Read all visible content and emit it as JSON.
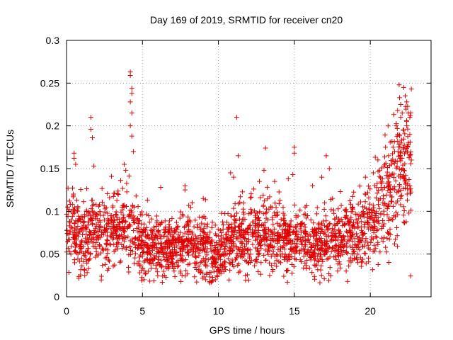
{
  "chart_data": {
    "type": "scatter",
    "title": "Day 169 of 2019, SRMTID for receiver cn20",
    "xlabel": "GPS time / hours",
    "ylabel": "SRMTID / TECUs",
    "xlim": [
      0,
      24
    ],
    "ylim": [
      0,
      0.3
    ],
    "xticks": [
      0,
      5,
      10,
      15,
      20
    ],
    "xtick_labels": [
      "0",
      "5",
      "10",
      "15",
      "20"
    ],
    "yticks": [
      0,
      0.05,
      0.1,
      0.15,
      0.2,
      0.25,
      0.3
    ],
    "ytick_labels": [
      "0",
      "0.05",
      "0.1",
      "0.15",
      "0.2",
      "0.25",
      "0.3"
    ],
    "grid": true,
    "marker": "plus",
    "series": [
      {
        "name": "SRMTID",
        "color": "#e00000",
        "baseline": [
          [
            0,
            0.082
          ],
          [
            0.5,
            0.078
          ],
          [
            1,
            0.072
          ],
          [
            2,
            0.075
          ],
          [
            3,
            0.078
          ],
          [
            4,
            0.085
          ],
          [
            4.5,
            0.07
          ],
          [
            5,
            0.062
          ],
          [
            6,
            0.058
          ],
          [
            7,
            0.06
          ],
          [
            8,
            0.062
          ],
          [
            9,
            0.058
          ],
          [
            9.5,
            0.05
          ],
          [
            10,
            0.048
          ],
          [
            10.5,
            0.06
          ],
          [
            11,
            0.068
          ],
          [
            12,
            0.072
          ],
          [
            13,
            0.075
          ],
          [
            14,
            0.072
          ],
          [
            15,
            0.065
          ],
          [
            16,
            0.062
          ],
          [
            17,
            0.065
          ],
          [
            18,
            0.068
          ],
          [
            19,
            0.072
          ],
          [
            20,
            0.082
          ],
          [
            21,
            0.11
          ],
          [
            22,
            0.14
          ],
          [
            22.7,
            0.15
          ]
        ],
        "spread": [
          [
            0,
            0.025
          ],
          [
            4,
            0.03
          ],
          [
            5,
            0.022
          ],
          [
            9,
            0.022
          ],
          [
            10,
            0.02
          ],
          [
            12,
            0.028
          ],
          [
            15,
            0.022
          ],
          [
            19,
            0.024
          ],
          [
            20,
            0.03
          ],
          [
            21,
            0.04
          ],
          [
            22.7,
            0.05
          ]
        ],
        "x_range": [
          0,
          22.7
        ],
        "point_count": 2400,
        "points": [
          [
            0.1,
            0.127
          ],
          [
            0.2,
            0.112
          ],
          [
            0.5,
            0.168
          ],
          [
            0.5,
            0.162
          ],
          [
            0.6,
            0.155
          ],
          [
            1.2,
            0.025
          ],
          [
            1.6,
            0.21
          ],
          [
            1.6,
            0.196
          ],
          [
            1.7,
            0.186
          ],
          [
            1.8,
            0.153
          ],
          [
            2.3,
            0.024
          ],
          [
            3.8,
            0.155
          ],
          [
            3.9,
            0.148
          ],
          [
            4.2,
            0.263
          ],
          [
            4.2,
            0.259
          ],
          [
            4.3,
            0.244
          ],
          [
            4.3,
            0.238
          ],
          [
            4.2,
            0.228
          ],
          [
            4.3,
            0.215
          ],
          [
            4.2,
            0.2
          ],
          [
            4.3,
            0.188
          ],
          [
            4.4,
            0.17
          ],
          [
            5.1,
            0.02
          ],
          [
            6.2,
            0.128
          ],
          [
            7.8,
            0.13
          ],
          [
            7.8,
            0.125
          ],
          [
            9.0,
            0.115
          ],
          [
            9.8,
            0.02
          ],
          [
            9.9,
            0.025
          ],
          [
            10.8,
            0.145
          ],
          [
            11.0,
            0.14
          ],
          [
            11.2,
            0.21
          ],
          [
            11.3,
            0.165
          ],
          [
            12.7,
            0.135
          ],
          [
            13.1,
            0.174
          ],
          [
            13.0,
            0.148
          ],
          [
            13.7,
            0.135
          ],
          [
            14.6,
            0.138
          ],
          [
            15.0,
            0.175
          ],
          [
            15.0,
            0.168
          ],
          [
            14.9,
            0.143
          ],
          [
            16.2,
            0.13
          ],
          [
            16.8,
            0.14
          ],
          [
            17.1,
            0.165
          ],
          [
            17.3,
            0.15
          ],
          [
            18.5,
            0.018
          ],
          [
            19.7,
            0.12
          ],
          [
            20.2,
            0.145
          ],
          [
            20.5,
            0.16
          ],
          [
            21.0,
            0.175
          ],
          [
            21.2,
            0.165
          ],
          [
            21.5,
            0.175
          ],
          [
            21.7,
            0.2
          ],
          [
            21.8,
            0.218
          ],
          [
            21.9,
            0.248
          ],
          [
            22.0,
            0.225
          ],
          [
            22.1,
            0.215
          ],
          [
            22.2,
            0.245
          ],
          [
            22.3,
            0.235
          ],
          [
            22.4,
            0.228
          ],
          [
            22.5,
            0.215
          ],
          [
            22.6,
            0.21
          ],
          [
            22.7,
            0.243
          ],
          [
            22.6,
            0.19
          ],
          [
            22.5,
            0.18
          ],
          [
            22.4,
            0.2
          ],
          [
            22.2,
            0.195
          ],
          [
            22.0,
            0.21
          ],
          [
            21.9,
            0.19
          ],
          [
            21.8,
            0.182
          ],
          [
            21.6,
            0.17
          ],
          [
            21.4,
            0.155
          ],
          [
            22.7,
            0.16
          ],
          [
            22.6,
            0.13
          ],
          [
            22.3,
            0.17
          ]
        ]
      }
    ]
  }
}
